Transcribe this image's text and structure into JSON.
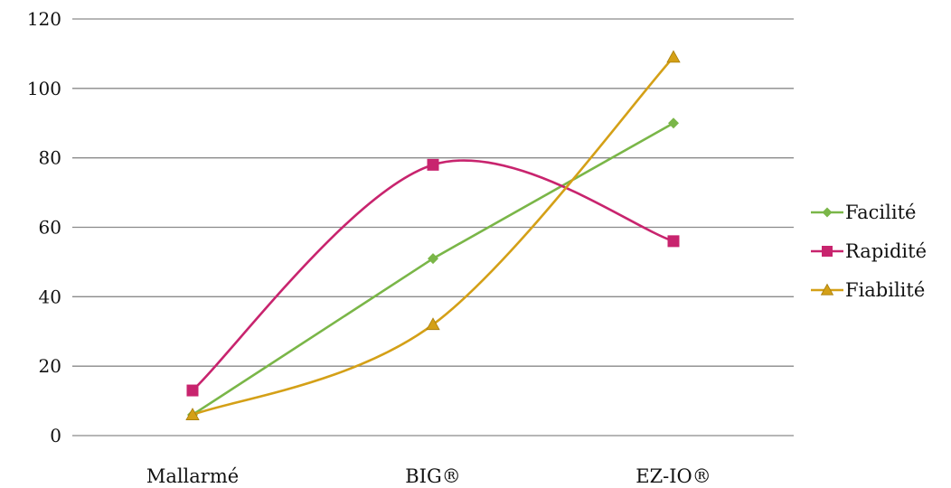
{
  "chart_data": {
    "type": "line",
    "title": "",
    "xlabel": "",
    "ylabel": "",
    "categories": [
      "Mallarmé",
      "BIG®",
      "EZ-IO®"
    ],
    "y_ticks": [
      "0",
      "20",
      "40",
      "60",
      "80",
      "100",
      "120"
    ],
    "ylim": [
      0,
      120
    ],
    "grid": true,
    "legend_position": "right",
    "series": [
      {
        "name": "Facilité",
        "values": [
          6,
          51,
          90
        ],
        "color": "#7ab648",
        "marker": "diamond",
        "smooth": false
      },
      {
        "name": "Rapidité",
        "values": [
          13,
          78,
          56
        ],
        "color": "#c8246e",
        "marker": "square",
        "smooth": true
      },
      {
        "name": "Fiabilité",
        "values": [
          6,
          32,
          109
        ],
        "color": "#d4a017",
        "marker": "triangle",
        "smooth": true
      }
    ]
  }
}
